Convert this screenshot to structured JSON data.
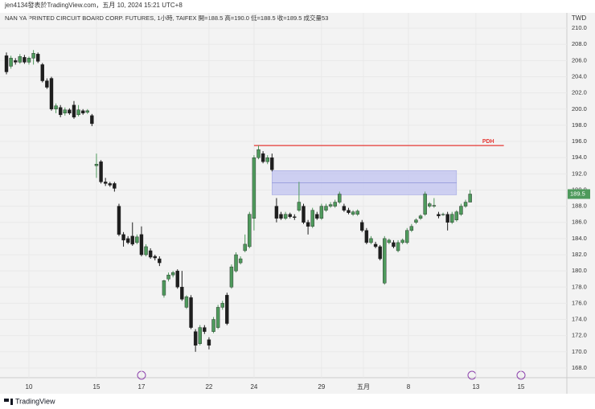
{
  "published_by": "jen4134發表於TradingView.com，五月 10, 2024 15:21 UTC+8",
  "footer": "TradingView",
  "chart_data": {
    "type": "candlestick",
    "title": "NAN YA PRINTED CIRCUIT BOARD CORP. FUTURES, 1小時, TAIFEX  開=188.5 高=190.0 低=188.5 收=189.5 成交量53",
    "currency": "TWD",
    "up_color": "#4e9a5c",
    "down_color": "#1e1e1e",
    "grid": true,
    "open": [
      206.6,
      205.3,
      206,
      205.8,
      206.4,
      205.8,
      206.3,
      206.8,
      205.5,
      203.5,
      203.8,
      200,
      200.2,
      199.5,
      199.9,
      200.5,
      199.3,
      199.8,
      199.6,
      199.2,
      193,
      193.5,
      191,
      190.8,
      190.8,
      188,
      184.5,
      184,
      184.3,
      183.5,
      184.5,
      182,
      182.5,
      181.8,
      181.5,
      177,
      179,
      179.5,
      180,
      178,
      175.5,
      176.7,
      172.5,
      171,
      173,
      171.5,
      172.5,
      173,
      175.5,
      177,
      178,
      180,
      181,
      182.5,
      183,
      186.5,
      194,
      194.5,
      193.5,
      194,
      188,
      187,
      186.5,
      187,
      186.7,
      187.5,
      188,
      186,
      185.5,
      187,
      186.5,
      187.5,
      188,
      188,
      188.5,
      188,
      187.5,
      187,
      187,
      186,
      185,
      183.5,
      183.3,
      183,
      178.5,
      183.5,
      183.5,
      182.5,
      183.5,
      183.5,
      185,
      186,
      186.5,
      187,
      188,
      188,
      187,
      187,
      187,
      186,
      186.3,
      187,
      188,
      188.5
    ],
    "high": [
      207,
      206.6,
      206.3,
      206.8,
      206.7,
      206.5,
      207.3,
      207,
      205.7,
      203.8,
      204,
      200.7,
      200.5,
      200.2,
      200.1,
      201,
      200.5,
      200,
      200,
      199.4,
      194.5,
      193.7,
      191.5,
      191,
      191,
      188.3,
      184.8,
      184.3,
      186,
      184.5,
      185.5,
      183.3,
      182.8,
      182,
      181.8,
      178.9,
      179.8,
      180,
      180.2,
      180,
      177,
      177,
      172.8,
      173.3,
      173.3,
      171.8,
      174.3,
      175.8,
      176.3,
      177.3,
      180.8,
      182.3,
      181.8,
      184.5,
      187.3,
      194.3,
      195.5,
      194.8,
      194.3,
      194.5,
      189,
      187.3,
      187.3,
      187.2,
      187,
      191,
      188.3,
      186.3,
      187.8,
      187.3,
      188.3,
      188.3,
      188.5,
      188.8,
      189.8,
      188.3,
      187.8,
      187.5,
      187.6,
      186.3,
      185.3,
      184.3,
      183.6,
      183.2,
      184.3,
      184,
      183.8,
      183.8,
      184,
      185.3,
      185.8,
      186.5,
      187,
      189.8,
      188.5,
      189,
      187.3,
      187.2,
      187.3,
      187.3,
      187.5,
      188.3,
      188.8,
      190
    ],
    "low": [
      204.3,
      205,
      205.5,
      205.6,
      205.6,
      205.5,
      205.5,
      205.7,
      203.3,
      202.5,
      199.8,
      199.5,
      199,
      199.2,
      199.3,
      198.8,
      199.1,
      199.3,
      199.4,
      197.9,
      191.5,
      190.8,
      190.5,
      190.4,
      189.8,
      184.3,
      183,
      183.3,
      183.1,
      183.3,
      181.8,
      181.8,
      181.5,
      181.3,
      180.6,
      176.7,
      178.7,
      179.2,
      177.8,
      176.3,
      175.3,
      172.8,
      170,
      170.8,
      172.2,
      170.3,
      172.3,
      172.8,
      175.2,
      173.3,
      177.8,
      179.8,
      180.8,
      182.3,
      182.8,
      185,
      193.8,
      193.3,
      193.2,
      192.3,
      186,
      186.3,
      186.3,
      186.5,
      186.3,
      187.3,
      185.8,
      184.5,
      185.3,
      186.3,
      186.3,
      187.3,
      187.8,
      187.8,
      188.3,
      187.3,
      187,
      186.8,
      186.8,
      184.8,
      183.3,
      183.3,
      182.8,
      181.3,
      178.3,
      183.3,
      182.8,
      182.3,
      183.3,
      183.3,
      184.8,
      185.8,
      186.3,
      186.8,
      187.8,
      187.8,
      186.5,
      186.8,
      185,
      185.8,
      186.1,
      186.8,
      187.8,
      188.5
    ],
    "close": [
      204.6,
      206.3,
      205.8,
      206.5,
      205.8,
      206.3,
      206.9,
      205.9,
      203.5,
      202.7,
      200,
      200.4,
      199.3,
      199.9,
      199.5,
      199,
      199.9,
      199.5,
      199.8,
      198.2,
      193.2,
      191,
      190.8,
      190.6,
      190.2,
      184.5,
      183.8,
      183.5,
      183.3,
      184.2,
      182,
      183,
      181.7,
      181.6,
      181,
      178.8,
      179.5,
      179.8,
      178,
      176.5,
      176.8,
      173,
      170.8,
      173,
      172.5,
      170.8,
      174,
      175.5,
      176,
      173.5,
      180.5,
      182,
      181.5,
      183.3,
      187,
      194,
      195,
      193.5,
      194,
      192.5,
      186.5,
      186.5,
      187,
      186.7,
      186.6,
      188.5,
      186,
      185.5,
      187.5,
      186.5,
      188,
      188,
      188.2,
      188.5,
      189.5,
      187.5,
      187.2,
      187.3,
      187.4,
      185,
      183.5,
      184,
      183,
      181.5,
      184,
      183.8,
      183,
      183.5,
      183.8,
      185,
      185.5,
      186.3,
      186.8,
      189.5,
      188.3,
      188.1,
      186.8,
      187,
      186,
      187,
      187.3,
      188,
      188.5,
      189.5
    ],
    "xlim": [
      -1.43,
      124.5
    ],
    "xticks": [
      {
        "value": 5,
        "label": "10"
      },
      {
        "value": 20,
        "label": "15"
      },
      {
        "value": 30,
        "label": "17"
      },
      {
        "value": 45,
        "label": "22"
      },
      {
        "value": 55,
        "label": "24"
      },
      {
        "value": 70,
        "label": "29"
      },
      {
        "value": 79.3,
        "label": "五月"
      },
      {
        "value": 89.3,
        "label": "8"
      },
      {
        "value": 104.3,
        "label": "13"
      },
      {
        "value": 114.3,
        "label": "15"
      }
    ],
    "ylim": [
      167.2,
      211.7
    ],
    "yticks": [
      {
        "value": 168,
        "label": "168.0"
      },
      {
        "value": 170,
        "label": "170.0"
      },
      {
        "value": 172,
        "label": "172.0"
      },
      {
        "value": 174,
        "label": "174.0"
      },
      {
        "value": 176,
        "label": "176.0"
      },
      {
        "value": 178,
        "label": "178.0"
      },
      {
        "value": 180,
        "label": "180.0"
      },
      {
        "value": 182,
        "label": "182.0"
      },
      {
        "value": 184,
        "label": "184.0"
      },
      {
        "value": 186,
        "label": "186.0"
      },
      {
        "value": 188,
        "label": "188.0"
      },
      {
        "value": 190,
        "label": "190.0"
      },
      {
        "value": 192,
        "label": "192.0"
      },
      {
        "value": 194,
        "label": "194.0"
      },
      {
        "value": 196,
        "label": "196.0"
      },
      {
        "value": 198,
        "label": "198.0"
      },
      {
        "value": 200,
        "label": "200.0"
      },
      {
        "value": 202,
        "label": "202.0"
      },
      {
        "value": 204,
        "label": "204.0"
      },
      {
        "value": 206,
        "label": "206.0"
      },
      {
        "value": 208,
        "label": "208.0"
      },
      {
        "value": 210,
        "label": "210.0"
      }
    ],
    "pdh": {
      "label": "PDH",
      "value": 195.5,
      "from": 55,
      "to": 110.5,
      "color": "#e53935"
    },
    "zone": {
      "high": 192.4,
      "low": 189.4,
      "mid": 190.9,
      "from": 59,
      "to": 100,
      "color": "#c5c8f0"
    }
  }
}
